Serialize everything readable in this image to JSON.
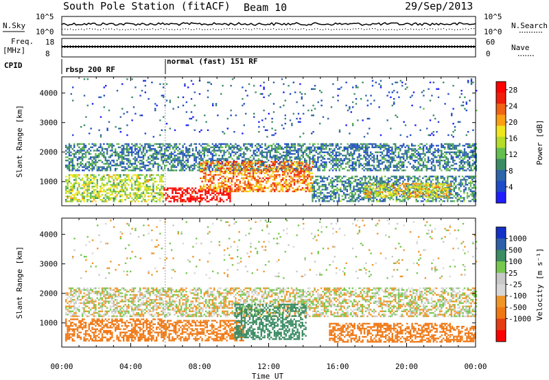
{
  "header": {
    "station": "South Pole Station (fitACF)",
    "beam": "Beam 10",
    "date": "29/Sep/2013"
  },
  "summary_panels": {
    "nsky_label": "N.Sky",
    "nsky_ticks": [
      "10^5",
      "10^0"
    ],
    "nsearch_label": "N.Search",
    "nsearch_ticks": [
      "10^5",
      "10^0"
    ],
    "freq_label": "Freq.",
    "freq_unit": "[MHz]",
    "freq_ticks": [
      "18",
      "8"
    ],
    "nave_label": "Nave",
    "nave_ticks": [
      "60",
      "0"
    ],
    "cpid_label": "CPID",
    "cpid_modes": [
      {
        "label": "rbsp 200 RF",
        "start_hour": 0
      },
      {
        "label": "normal (fast) 151 RF",
        "start_hour": 6
      }
    ]
  },
  "colors": {
    "power_scale": [
      "#1e1eff",
      "#1e4bc8",
      "#2e64aa",
      "#3b8c64",
      "#64be50",
      "#b4dc28",
      "#f0e61e",
      "#faa014",
      "#f06414",
      "#f01e0a",
      "#ff0000"
    ],
    "velocity_scale": [
      "#1432c8",
      "#2e5fa8",
      "#3c8c64",
      "#78c850",
      "#c8c8c8",
      "#d7d7d7",
      "#f09628",
      "#f07814",
      "#e63c14",
      "#ff0000"
    ]
  },
  "chart_data": [
    {
      "type": "heatmap",
      "title": "Power",
      "ylabel": "Slant Range [km]",
      "xlabel": "Time UT",
      "ylim": [
        180,
        4550
      ],
      "xlim": [
        0,
        24
      ],
      "yticks": [
        "1000",
        "2000",
        "3000",
        "4000"
      ],
      "xticks": [
        "00:00",
        "04:00",
        "08:00",
        "12:00",
        "16:00",
        "20:00",
        "00:00"
      ],
      "colorbar": {
        "label": "Power [dB]",
        "ticks": [
          "4",
          "8",
          "12",
          "16",
          "20",
          "24",
          "28"
        ],
        "range": [
          0,
          30
        ]
      },
      "bands": [
        {
          "t0": 0.2,
          "t1": 5.9,
          "r0": 350,
          "r1": 1250,
          "value": 15
        },
        {
          "t0": 0.2,
          "t1": 24,
          "r0": 1400,
          "r1": 2300,
          "value": 8
        },
        {
          "t0": 5.9,
          "t1": 9.8,
          "r0": 350,
          "r1": 800,
          "value": 29
        },
        {
          "t0": 8.0,
          "t1": 14.5,
          "r0": 650,
          "r1": 1700,
          "value": 22
        },
        {
          "t0": 14.5,
          "t1": 24,
          "r0": 350,
          "r1": 1200,
          "value": 9
        },
        {
          "t0": 17.5,
          "t1": 22.5,
          "r0": 450,
          "r1": 950,
          "value": 18
        },
        {
          "t0": 0.5,
          "t1": 24,
          "r0": 2500,
          "r1": 4500,
          "value": 6
        }
      ]
    },
    {
      "type": "heatmap",
      "title": "Velocity",
      "ylabel": "Slant Range [km]",
      "xlabel": "Time UT",
      "ylim": [
        180,
        4550
      ],
      "xlim": [
        0,
        24
      ],
      "yticks": [
        "1000",
        "2000",
        "3000",
        "4000"
      ],
      "xticks": [
        "00:00",
        "04:00",
        "08:00",
        "12:00",
        "16:00",
        "20:00",
        "00:00"
      ],
      "colorbar": {
        "label": "Velocity [m s⁻¹]",
        "ticks": [
          "1000",
          "500",
          "100",
          "25",
          "-25",
          "-100",
          "-500",
          "-1000"
        ],
        "range": [
          -1000,
          1000
        ]
      },
      "bands": [
        {
          "t0": 0.2,
          "t1": 5.9,
          "r0": 400,
          "r1": 1150,
          "value": -200
        },
        {
          "t0": 0.2,
          "t1": 24,
          "r0": 1250,
          "r1": 2200,
          "value": 0
        },
        {
          "t0": 5.9,
          "t1": 10.5,
          "r0": 400,
          "r1": 1100,
          "value": -150
        },
        {
          "t0": 10.0,
          "t1": 14.2,
          "r0": 450,
          "r1": 1650,
          "value": 300
        },
        {
          "t0": 15.5,
          "t1": 22.5,
          "r0": 350,
          "r1": 1000,
          "value": -250
        },
        {
          "t0": 22.5,
          "t1": 24,
          "r0": 350,
          "r1": 900,
          "value": -300
        },
        {
          "t0": 0.5,
          "t1": 24,
          "r0": 2500,
          "r1": 4500,
          "value": 0
        }
      ]
    }
  ]
}
